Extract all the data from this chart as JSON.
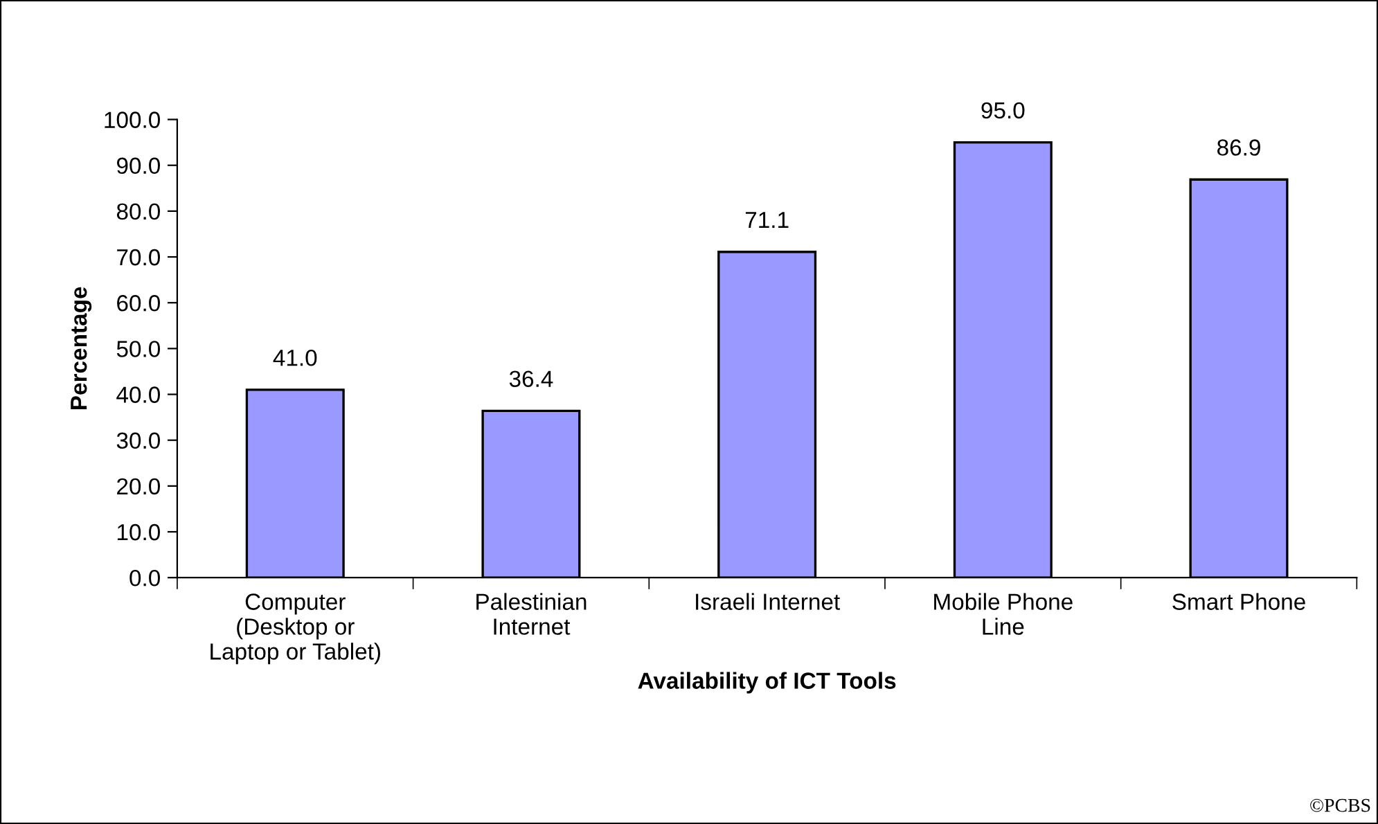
{
  "chart_data": {
    "type": "bar",
    "xlabel": "Availability of ICT Tools",
    "ylabel": "Percentage",
    "categories": [
      "Computer\n(Desktop or\nLaptop or Tablet)",
      "Palestinian\nInternet",
      "Israeli Internet",
      "Mobile Phone\nLine",
      "Smart Phone"
    ],
    "values": [
      41.0,
      36.4,
      71.1,
      95.0,
      86.9
    ],
    "color": "#9999ff",
    "ylim": [
      0,
      100
    ],
    "yticks": [
      {
        "value": 0,
        "label": "0.0"
      },
      {
        "value": 10,
        "label": "10.0"
      },
      {
        "value": 20,
        "label": "20.0"
      },
      {
        "value": 30,
        "label": "30.0"
      },
      {
        "value": 40,
        "label": "40.0"
      },
      {
        "value": 50,
        "label": "50.0"
      },
      {
        "value": 60,
        "label": "60.0"
      },
      {
        "value": 70,
        "label": "70.0"
      },
      {
        "value": 80,
        "label": "80.0"
      },
      {
        "value": 90,
        "label": "90.0"
      },
      {
        "value": 100,
        "label": "100.0"
      }
    ],
    "value_labels": [
      "41.0",
      "36.4",
      "71.1",
      "95.0",
      "86.9"
    ],
    "grid": false,
    "legend": false,
    "annotations": [
      "©PCBS"
    ]
  }
}
